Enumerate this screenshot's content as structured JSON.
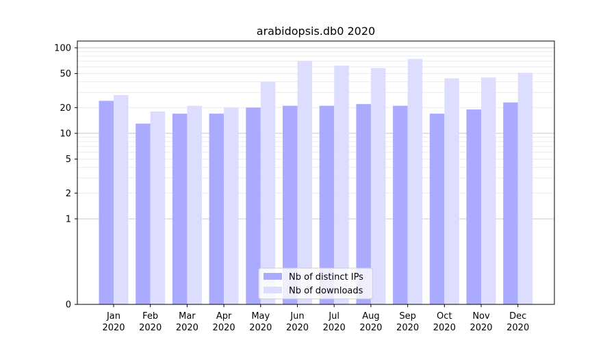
{
  "chart_data": {
    "type": "bar",
    "title": "arabidopsis.db0 2020",
    "xlabel": "",
    "ylabel": "",
    "yscale": "symlog",
    "ylim": [
      0,
      120
    ],
    "yticks": [
      0,
      1,
      2,
      5,
      10,
      20,
      50,
      100
    ],
    "grid": true,
    "legend_position": "bottom-center",
    "categories": [
      [
        "Jan",
        "2020"
      ],
      [
        "Feb",
        "2020"
      ],
      [
        "Mar",
        "2020"
      ],
      [
        "Apr",
        "2020"
      ],
      [
        "May",
        "2020"
      ],
      [
        "Jun",
        "2020"
      ],
      [
        "Jul",
        "2020"
      ],
      [
        "Aug",
        "2020"
      ],
      [
        "Sep",
        "2020"
      ],
      [
        "Oct",
        "2020"
      ],
      [
        "Nov",
        "2020"
      ],
      [
        "Dec",
        "2020"
      ]
    ],
    "series": [
      {
        "name": "Nb of distinct IPs",
        "color": "#aaaaff",
        "values": [
          24,
          13,
          17,
          17,
          20,
          21,
          21,
          22,
          21,
          17,
          19,
          23
        ]
      },
      {
        "name": "Nb of downloads",
        "color": "#ddddff",
        "values": [
          28,
          18,
          21,
          20,
          40,
          70,
          62,
          58,
          74,
          44,
          45,
          51
        ]
      }
    ]
  }
}
